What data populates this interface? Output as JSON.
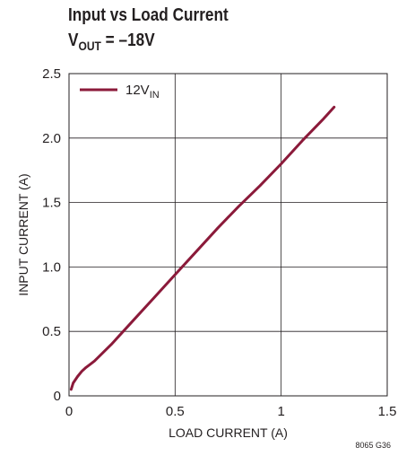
{
  "header": {
    "title_line1": "Input vs Load Current",
    "title_line2_main": "V",
    "title_line2_sub": "OUT",
    "title_line2_rest": " = –18V"
  },
  "figure_code": "8065 G36",
  "chart_data": {
    "type": "line",
    "title": "Input vs Load Current",
    "subtitle": "VOUT = –18V",
    "xlabel": "LOAD CURRENT (A)",
    "ylabel": "INPUT CURRENT (A)",
    "xlim": [
      0,
      1.5
    ],
    "ylim": [
      0,
      2.5
    ],
    "x_ticks": [
      0,
      0.5,
      1,
      1.5
    ],
    "x_tick_labels": [
      "0",
      "0.5",
      "1",
      "1.5"
    ],
    "y_ticks": [
      0,
      0.5,
      1,
      1.5,
      2,
      2.5
    ],
    "y_tick_labels": [
      "0",
      "0.5",
      "1.0",
      "1.5",
      "2.0",
      "2.5"
    ],
    "grid": true,
    "legend_position": "top-left",
    "series": [
      {
        "name_main": "12V",
        "name_sub": "IN",
        "color": "#8b1a3a",
        "x": [
          0.01,
          0.02,
          0.04,
          0.06,
          0.08,
          0.1,
          0.12,
          0.2,
          0.3,
          0.4,
          0.5,
          0.6,
          0.7,
          0.8,
          0.9,
          1.0,
          1.1,
          1.2,
          1.25
        ],
        "y": [
          0.05,
          0.1,
          0.15,
          0.19,
          0.22,
          0.245,
          0.27,
          0.4,
          0.58,
          0.76,
          0.94,
          1.12,
          1.3,
          1.47,
          1.63,
          1.8,
          1.98,
          2.15,
          2.24
        ]
      }
    ]
  }
}
